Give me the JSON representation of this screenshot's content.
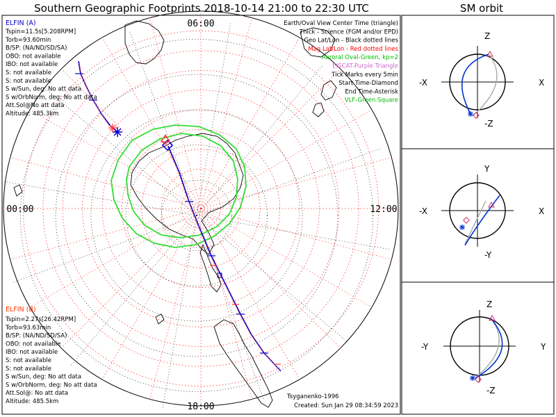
{
  "header": {
    "title": "Southern Geographic Footprints 2018-10-14 21:00 to 22:30 UTC",
    "orbit_title": "SM orbit"
  },
  "map": {
    "mlt_labels": {
      "top": "06:00",
      "left": "00:00",
      "right": "12:00",
      "bottom": "18:00"
    }
  },
  "elfin_a": {
    "name": "ELFIN (A)",
    "color": "#0000cc",
    "lines": [
      "Tspin=11.5s[5.208RPM]",
      "Torb=93.60min",
      "B/SP: (NA/ND/SD/SA)",
      "OBO: not available",
      "IBO: not available",
      "S: not available",
      "S: not available",
      "S w/Sun, deg: No att data",
      "S w/OrbNorm, deg: No att data",
      "Att.Sol@No att data",
      "Altitude: 485.3km"
    ]
  },
  "elfin_b": {
    "name": "ELFIN (B)",
    "color": "#ff3300",
    "lines": [
      "Tspin=2.27s[26.42RPM]",
      "Torb=93.63min",
      "B/SP: (NA/ND/SD/SA)",
      "OBO: not available",
      "IBO: not available",
      "S: not available",
      "S: not available",
      "S w/Sun, deg: No att data",
      "S w/OrbNorm, deg: No att data",
      "Att.Sol@: No att data",
      "Altitude: 485.5km"
    ]
  },
  "legend": [
    {
      "text": "Earth/Oval View Center Time (triangle)",
      "color": "#000000"
    },
    {
      "text": "Thick - Science (FGM and/or EPD)",
      "color": "#000000"
    },
    {
      "text": "Geo Lat/Lon - Black dotted lines",
      "color": "#000000"
    },
    {
      "text": "Mag Lat/Lon - Red dotted lines",
      "color": "#ff0000"
    },
    {
      "text": "Auroral Oval-Green, kp=2",
      "color": "#00bb00"
    },
    {
      "text": "EISCAT-Purple Triangle",
      "color": "#cc66cc"
    },
    {
      "text": "Tick Marks every 5min",
      "color": "#000000"
    },
    {
      "text": "Start Time-Diamond",
      "color": "#000000"
    },
    {
      "text": "End Time-Asterisk",
      "color": "#000000"
    },
    {
      "text": "VLF-Green Square",
      "color": "#00bb00"
    }
  ],
  "footer": {
    "credit": "Tsyganenko-1996",
    "created": "Created: Sun Jan 29 08:34:59 2023"
  },
  "orbit_panels": [
    {
      "top": "Z",
      "bottom": "-Z",
      "left": "-X",
      "right": "X"
    },
    {
      "top": "Y",
      "bottom": "-Y",
      "left": "-X",
      "right": "X"
    },
    {
      "top": "Z",
      "bottom": "-Z",
      "left": "-Y",
      "right": "Y"
    }
  ]
}
